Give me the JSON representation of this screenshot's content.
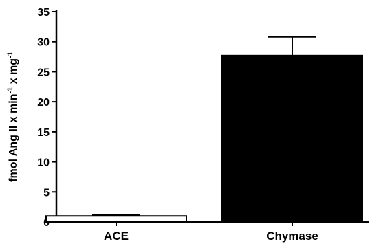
{
  "chart_data": {
    "type": "bar",
    "categories": [
      "ACE",
      "Chymase"
    ],
    "values": [
      1.0,
      27.7
    ],
    "error_plus": [
      0.2,
      3.1
    ],
    "ylabel_parts": [
      "fmol Ang II x min",
      "-1",
      " x mg",
      "-1"
    ],
    "ylim": [
      0,
      35
    ],
    "yticks": [
      "0",
      "5",
      "10",
      "15",
      "20",
      "25",
      "30",
      "35"
    ],
    "bar_fills": [
      "#ffffff",
      "#000000"
    ],
    "bar_stroke": "#000000",
    "grid": false,
    "legend": "none"
  }
}
